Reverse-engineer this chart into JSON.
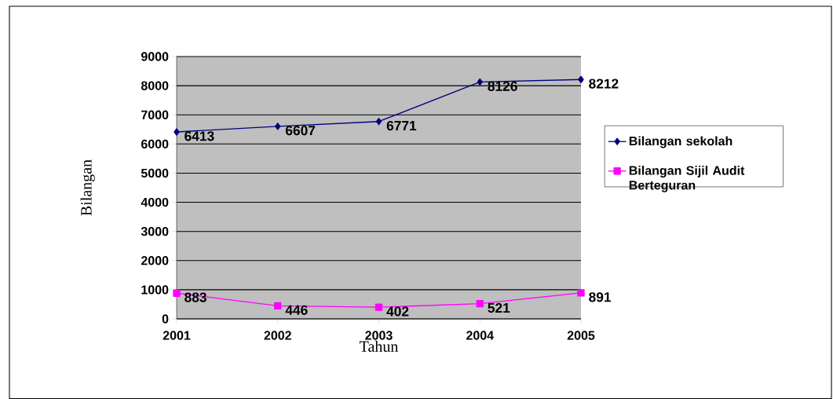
{
  "chart_data": {
    "type": "line",
    "xlabel": "Tahun",
    "ylabel": "Bilangan",
    "categories": [
      "2001",
      "2002",
      "2003",
      "2004",
      "2005"
    ],
    "series": [
      {
        "name": "Bilangan sekolah",
        "color": "#000080",
        "marker": "diamond",
        "values": [
          6413,
          6607,
          6771,
          8126,
          8212
        ]
      },
      {
        "name": "Bilangan Sijil Audit Berteguran",
        "color": "#ff00ff",
        "marker": "square",
        "values": [
          883,
          446,
          402,
          521,
          891
        ]
      }
    ],
    "ylim": [
      0,
      9000
    ],
    "yticks": [
      0,
      1000,
      2000,
      3000,
      4000,
      5000,
      6000,
      7000,
      8000,
      9000
    ],
    "grid": "y",
    "legend": "right",
    "data_labels": true,
    "line_style": "solid"
  }
}
